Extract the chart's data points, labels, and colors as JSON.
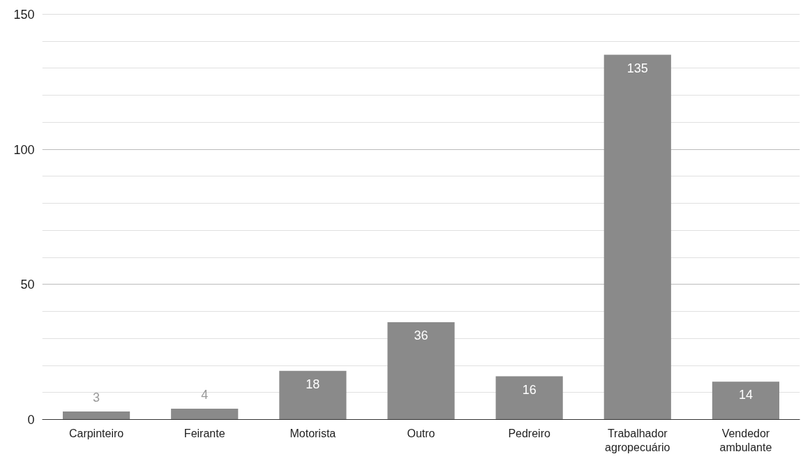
{
  "chart_data": {
    "type": "bar",
    "categories": [
      "Carpinteiro",
      "Feirante",
      "Motorista",
      "Outro",
      "Pedreiro",
      "Trabalhador agropecuário",
      "Vendedor ambulante"
    ],
    "values": [
      3,
      4,
      18,
      36,
      16,
      135,
      14
    ],
    "color": "#8a8a8a",
    "ylim": [
      0,
      150
    ],
    "yticks": [
      0,
      50,
      100,
      150
    ],
    "grid": "y",
    "data_labels": true
  }
}
